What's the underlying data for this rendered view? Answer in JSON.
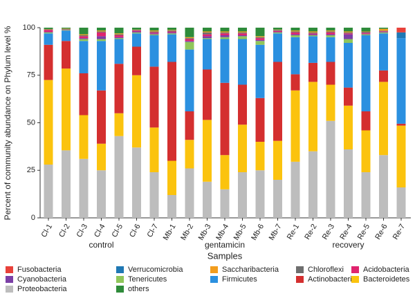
{
  "chart_data": {
    "type": "stacked_bar",
    "xlabel": "Samples",
    "ylabel": "Percent of community abundance on Phylum level %",
    "ylim": [
      0,
      100
    ],
    "yticks": [
      0,
      25,
      50,
      75,
      100
    ],
    "categories": [
      "Cl-1",
      "Cl-2",
      "Cl-3",
      "Cl-4",
      "Cl-5",
      "Cl-6",
      "Cl-7",
      "Mb-1",
      "Mb-2",
      "Mb-3",
      "Mb-4",
      "Mb-5",
      "Mb-6",
      "Mb-7",
      "Re-1",
      "Re-2",
      "Re-3",
      "Re-4",
      "Re-5",
      "Re-6",
      "Re-7"
    ],
    "groups": [
      {
        "label": "control",
        "size": 7
      },
      {
        "label": "gentamicin",
        "size": 7
      },
      {
        "label": "recovery",
        "size": 7
      }
    ],
    "legend_order": [
      10,
      9,
      8,
      7,
      6,
      5,
      4,
      3,
      2,
      1,
      0,
      11
    ],
    "series": [
      {
        "name": "Proteobacteria",
        "color": "#bdbdbd",
        "values": [
          28,
          35.5,
          31,
          25,
          43,
          37,
          24,
          12,
          26,
          19,
          15,
          24,
          25,
          20,
          29.5,
          35,
          51,
          36,
          24,
          33,
          16
        ]
      },
      {
        "name": "Bacteroidetes",
        "color": "#fbc30e",
        "values": [
          44.5,
          43,
          23,
          14,
          12,
          38,
          23.5,
          18,
          15,
          32.5,
          18,
          25,
          15,
          20.5,
          37.5,
          36.5,
          19,
          23,
          22,
          38.5,
          32.5
        ]
      },
      {
        "name": "Actinobacteria",
        "color": "#d42f2f",
        "values": [
          18.5,
          14.5,
          22,
          28,
          26,
          15,
          32,
          52,
          15,
          26.5,
          38,
          21,
          23,
          41.5,
          8.5,
          10,
          12,
          9.5,
          10,
          6,
          1
        ]
      },
      {
        "name": "Firmicutes",
        "color": "#2b90e0",
        "values": [
          6,
          5.5,
          17,
          26,
          13,
          7,
          16.5,
          14.5,
          32.5,
          16,
          23,
          24,
          28,
          15,
          19.5,
          14,
          13,
          23.5,
          40,
          19.5,
          45
        ]
      },
      {
        "name": "Tenericutes",
        "color": "#8fc65a",
        "values": [
          0.5,
          0.3,
          1,
          1,
          0.5,
          0.5,
          0.5,
          0.5,
          4,
          0.5,
          1,
          1.5,
          2,
          0.5,
          1,
          0.5,
          1,
          2,
          0.5,
          0.5,
          0
        ]
      },
      {
        "name": "Cyanobacteria",
        "color": "#7b3fa6",
        "values": [
          0.3,
          0,
          0.5,
          1.5,
          0.5,
          0.5,
          0.5,
          0.5,
          0.5,
          1,
          1,
          0.5,
          0.5,
          0.3,
          0.5,
          0.5,
          0.5,
          2.5,
          0.3,
          0.3,
          0
        ]
      },
      {
        "name": "Acidobacteria",
        "color": "#e0246e",
        "values": [
          1,
          0.2,
          1,
          2,
          1,
          0.5,
          0.5,
          0.5,
          1,
          1,
          1,
          1,
          1,
          0.5,
          1,
          0.5,
          1,
          0.5,
          0.5,
          0.3,
          0
        ]
      },
      {
        "name": "Chloroflexi",
        "color": "#6e6e6e",
        "values": [
          0.3,
          0.3,
          0.5,
          0.5,
          0.5,
          0.3,
          0.5,
          0.5,
          0.5,
          1,
          0.5,
          0.5,
          0.5,
          0.5,
          0.5,
          0.5,
          0.5,
          0.5,
          0.5,
          0.3,
          0
        ]
      },
      {
        "name": "Saccharibacteria",
        "color": "#f29d1e",
        "values": [
          0.2,
          0.2,
          0.5,
          0.5,
          0.5,
          0.2,
          0.5,
          0.3,
          0.5,
          0.5,
          0.5,
          0.5,
          0.5,
          0.2,
          0.5,
          0.5,
          0.5,
          0.5,
          0.2,
          1,
          0
        ]
      },
      {
        "name": "Verrucomicrobia",
        "color": "#1f78b4",
        "values": [
          0,
          0,
          0,
          0,
          0,
          0,
          0,
          0,
          0,
          0,
          0,
          0,
          0,
          0,
          0,
          0,
          0,
          0,
          0,
          0,
          3
        ]
      },
      {
        "name": "Fusobacteria",
        "color": "#e8413a",
        "values": [
          0,
          0,
          0,
          0,
          0,
          0,
          0,
          0,
          0,
          0,
          0,
          0,
          0,
          0,
          0,
          0,
          0,
          0,
          0,
          0,
          2.5
        ]
      },
      {
        "name": "others",
        "color": "#2e8b3a",
        "values": [
          0.7,
          0.5,
          3.5,
          1.5,
          3,
          1,
          1.5,
          1.2,
          5,
          2,
          2,
          2,
          4.5,
          1,
          1.5,
          2,
          1.5,
          2,
          2,
          0.6,
          0
        ]
      }
    ]
  }
}
